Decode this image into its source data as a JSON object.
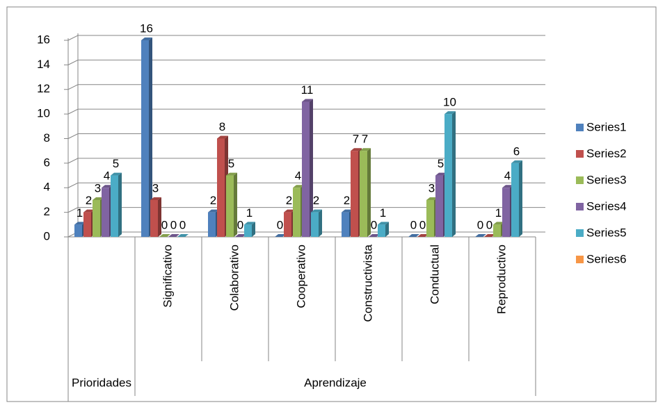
{
  "chart_data": {
    "type": "bar3d",
    "categories": [
      null,
      "Significativo",
      "Colaborativo",
      "Cooperativo",
      "Constructivista",
      "Conductual",
      "Reproductivo"
    ],
    "groups": [
      {
        "name": "Prioridades",
        "size": 1
      },
      {
        "name": "Aprendizaje",
        "size": 6
      }
    ],
    "series": [
      {
        "name": "Series1",
        "color": "#4f81bd",
        "values": [
          1,
          16,
          2,
          0,
          2,
          0,
          0
        ]
      },
      {
        "name": "Series2",
        "color": "#c0504d",
        "values": [
          2,
          3,
          8,
          2,
          7,
          0,
          0
        ]
      },
      {
        "name": "Series3",
        "color": "#9bbb59",
        "values": [
          3,
          0,
          5,
          4,
          7,
          3,
          1
        ]
      },
      {
        "name": "Series4",
        "color": "#8064a2",
        "values": [
          4,
          0,
          0,
          11,
          0,
          5,
          4
        ]
      },
      {
        "name": "Series5",
        "color": "#4bacc6",
        "values": [
          5,
          0,
          1,
          2,
          1,
          10,
          6
        ]
      },
      {
        "name": "Series6",
        "color": "#f79646",
        "values": [
          null,
          null,
          null,
          null,
          null,
          null,
          null
        ]
      }
    ],
    "ylim": [
      0,
      16
    ],
    "yticks": [
      0,
      2,
      4,
      6,
      8,
      10,
      12,
      14,
      16
    ],
    "grid": true,
    "legend": "right"
  }
}
